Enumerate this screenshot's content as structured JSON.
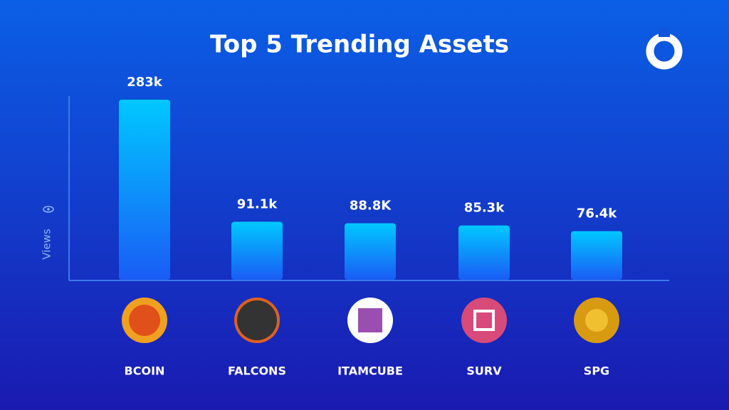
{
  "chart_data": {
    "type": "bar",
    "title": "Top 5 Trending Assets",
    "y_label": "Views",
    "categories": [
      "BCOIN",
      "FALCONS",
      "ITAMCUBE",
      "SURV",
      "SPG"
    ],
    "values": [
      283,
      91.1,
      88.8,
      85.3,
      76.4
    ],
    "value_labels": [
      "283k",
      "91.1k",
      "88.8K",
      "85.3k",
      "76.4k"
    ],
    "color": "#00c8ff"
  }
}
